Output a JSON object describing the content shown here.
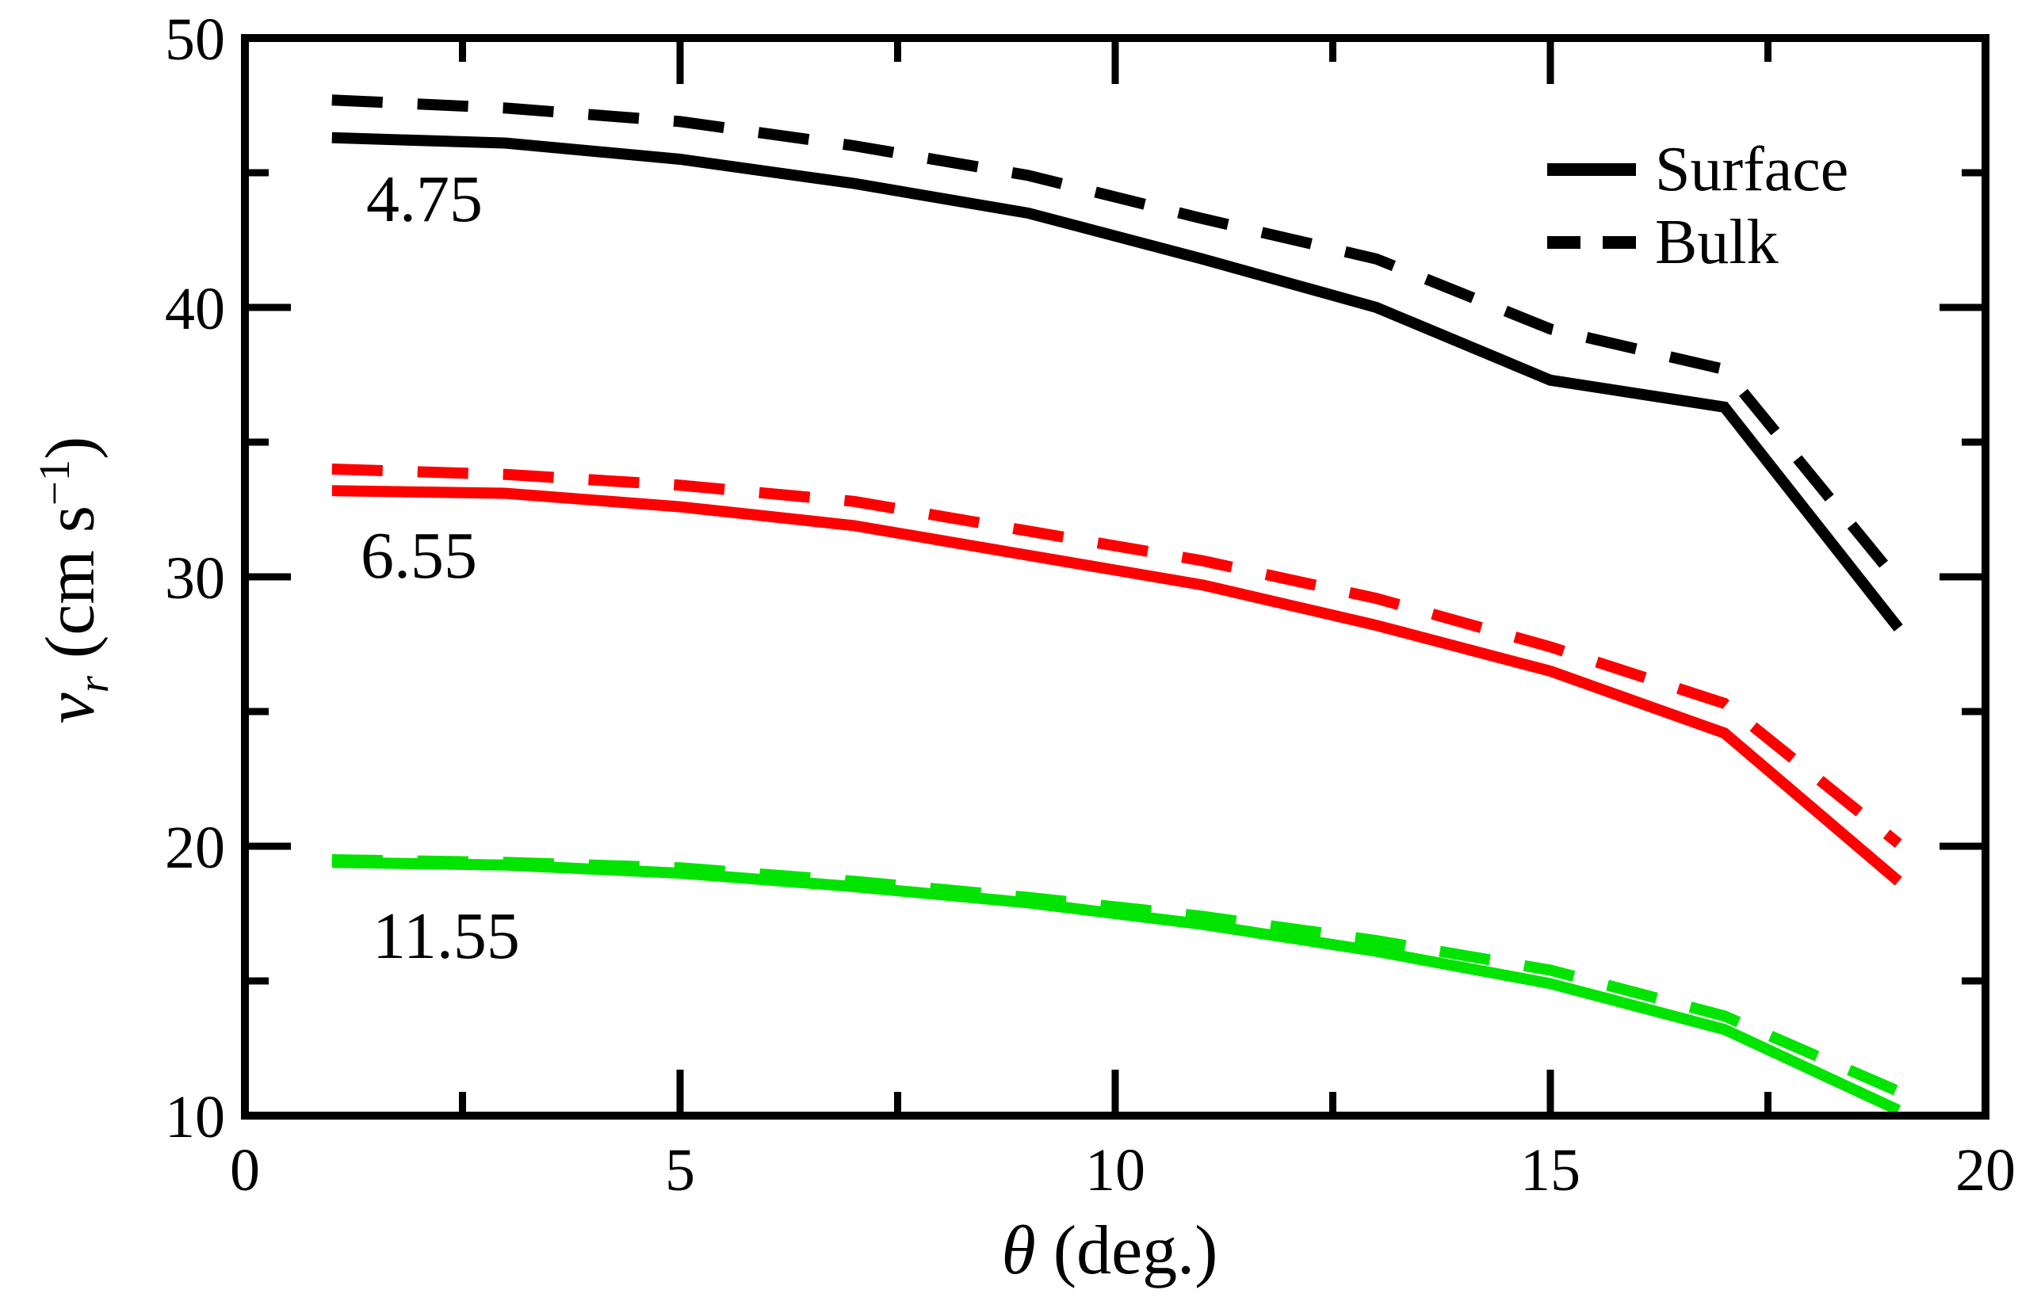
{
  "background_color": "#ffffff",
  "chart_data": {
    "type": "line",
    "x": [
      1,
      3,
      5,
      7,
      9,
      11,
      13,
      15,
      17,
      19
    ],
    "series": [
      {
        "name": "4.75 Surface",
        "group_label": "4.75",
        "line_style": "solid",
        "color": "#000000",
        "values": [
          46.3,
          46.1,
          45.5,
          44.6,
          43.5,
          41.8,
          40.0,
          37.3,
          36.3,
          28.1
        ]
      },
      {
        "name": "4.75 Bulk",
        "group_label": "4.75",
        "line_style": "dashed",
        "color": "#000000",
        "values": [
          47.7,
          47.4,
          46.9,
          46.0,
          44.9,
          43.3,
          41.8,
          39.2,
          37.7,
          29.8
        ]
      },
      {
        "name": "6.55 Surface",
        "group_label": "6.55",
        "line_style": "solid",
        "color": "#ff0000",
        "values": [
          33.2,
          33.1,
          32.6,
          31.9,
          30.8,
          29.7,
          28.2,
          26.5,
          24.2,
          18.7
        ]
      },
      {
        "name": "6.55 Bulk",
        "group_label": "6.55",
        "line_style": "dashed",
        "color": "#ff0000",
        "values": [
          34.0,
          33.8,
          33.4,
          32.8,
          31.7,
          30.6,
          29.2,
          27.4,
          25.3,
          20.1
        ]
      },
      {
        "name": "11.55 Surface",
        "group_label": "11.55",
        "line_style": "solid",
        "color": "#00e400",
        "values": [
          19.4,
          19.3,
          19.0,
          18.5,
          17.9,
          17.1,
          16.1,
          14.9,
          13.2,
          10.2
        ]
      },
      {
        "name": "11.55 Bulk",
        "group_label": "11.55",
        "line_style": "dashed",
        "color": "#00e400",
        "values": [
          19.5,
          19.4,
          19.2,
          18.7,
          18.1,
          17.4,
          16.5,
          15.4,
          13.7,
          10.9
        ]
      }
    ],
    "xlabel_theta": "θ",
    "xlabel_rest": " (deg.)",
    "ylabel_v": "v",
    "ylabel_sub": "r",
    "ylabel_mid": " (cm s",
    "ylabel_sup": "−1",
    "ylabel_end": ")",
    "xlim": [
      0,
      20
    ],
    "ylim": [
      10,
      50
    ],
    "xticks": {
      "major": [
        0,
        5,
        10,
        15,
        20
      ],
      "minor": [
        2.5,
        7.5,
        12.5,
        17.5
      ],
      "labels": [
        "0",
        "5",
        "10",
        "15",
        "20"
      ]
    },
    "yticks": {
      "major": [
        10,
        20,
        30,
        40,
        50
      ],
      "minor": [
        15,
        25,
        35,
        45
      ],
      "labels": [
        "10",
        "20",
        "30",
        "40",
        "50"
      ]
    },
    "grid": "off",
    "legend_position": "top-right-inside",
    "legend": [
      {
        "label": "Surface",
        "line_style": "solid"
      },
      {
        "label": "Bulk",
        "line_style": "dashed"
      }
    ],
    "annotations": [
      {
        "text": "4.75",
        "color": "#000000"
      },
      {
        "text": "6.55",
        "color": "#000000"
      },
      {
        "text": "11.55",
        "color": "#000000"
      }
    ]
  }
}
